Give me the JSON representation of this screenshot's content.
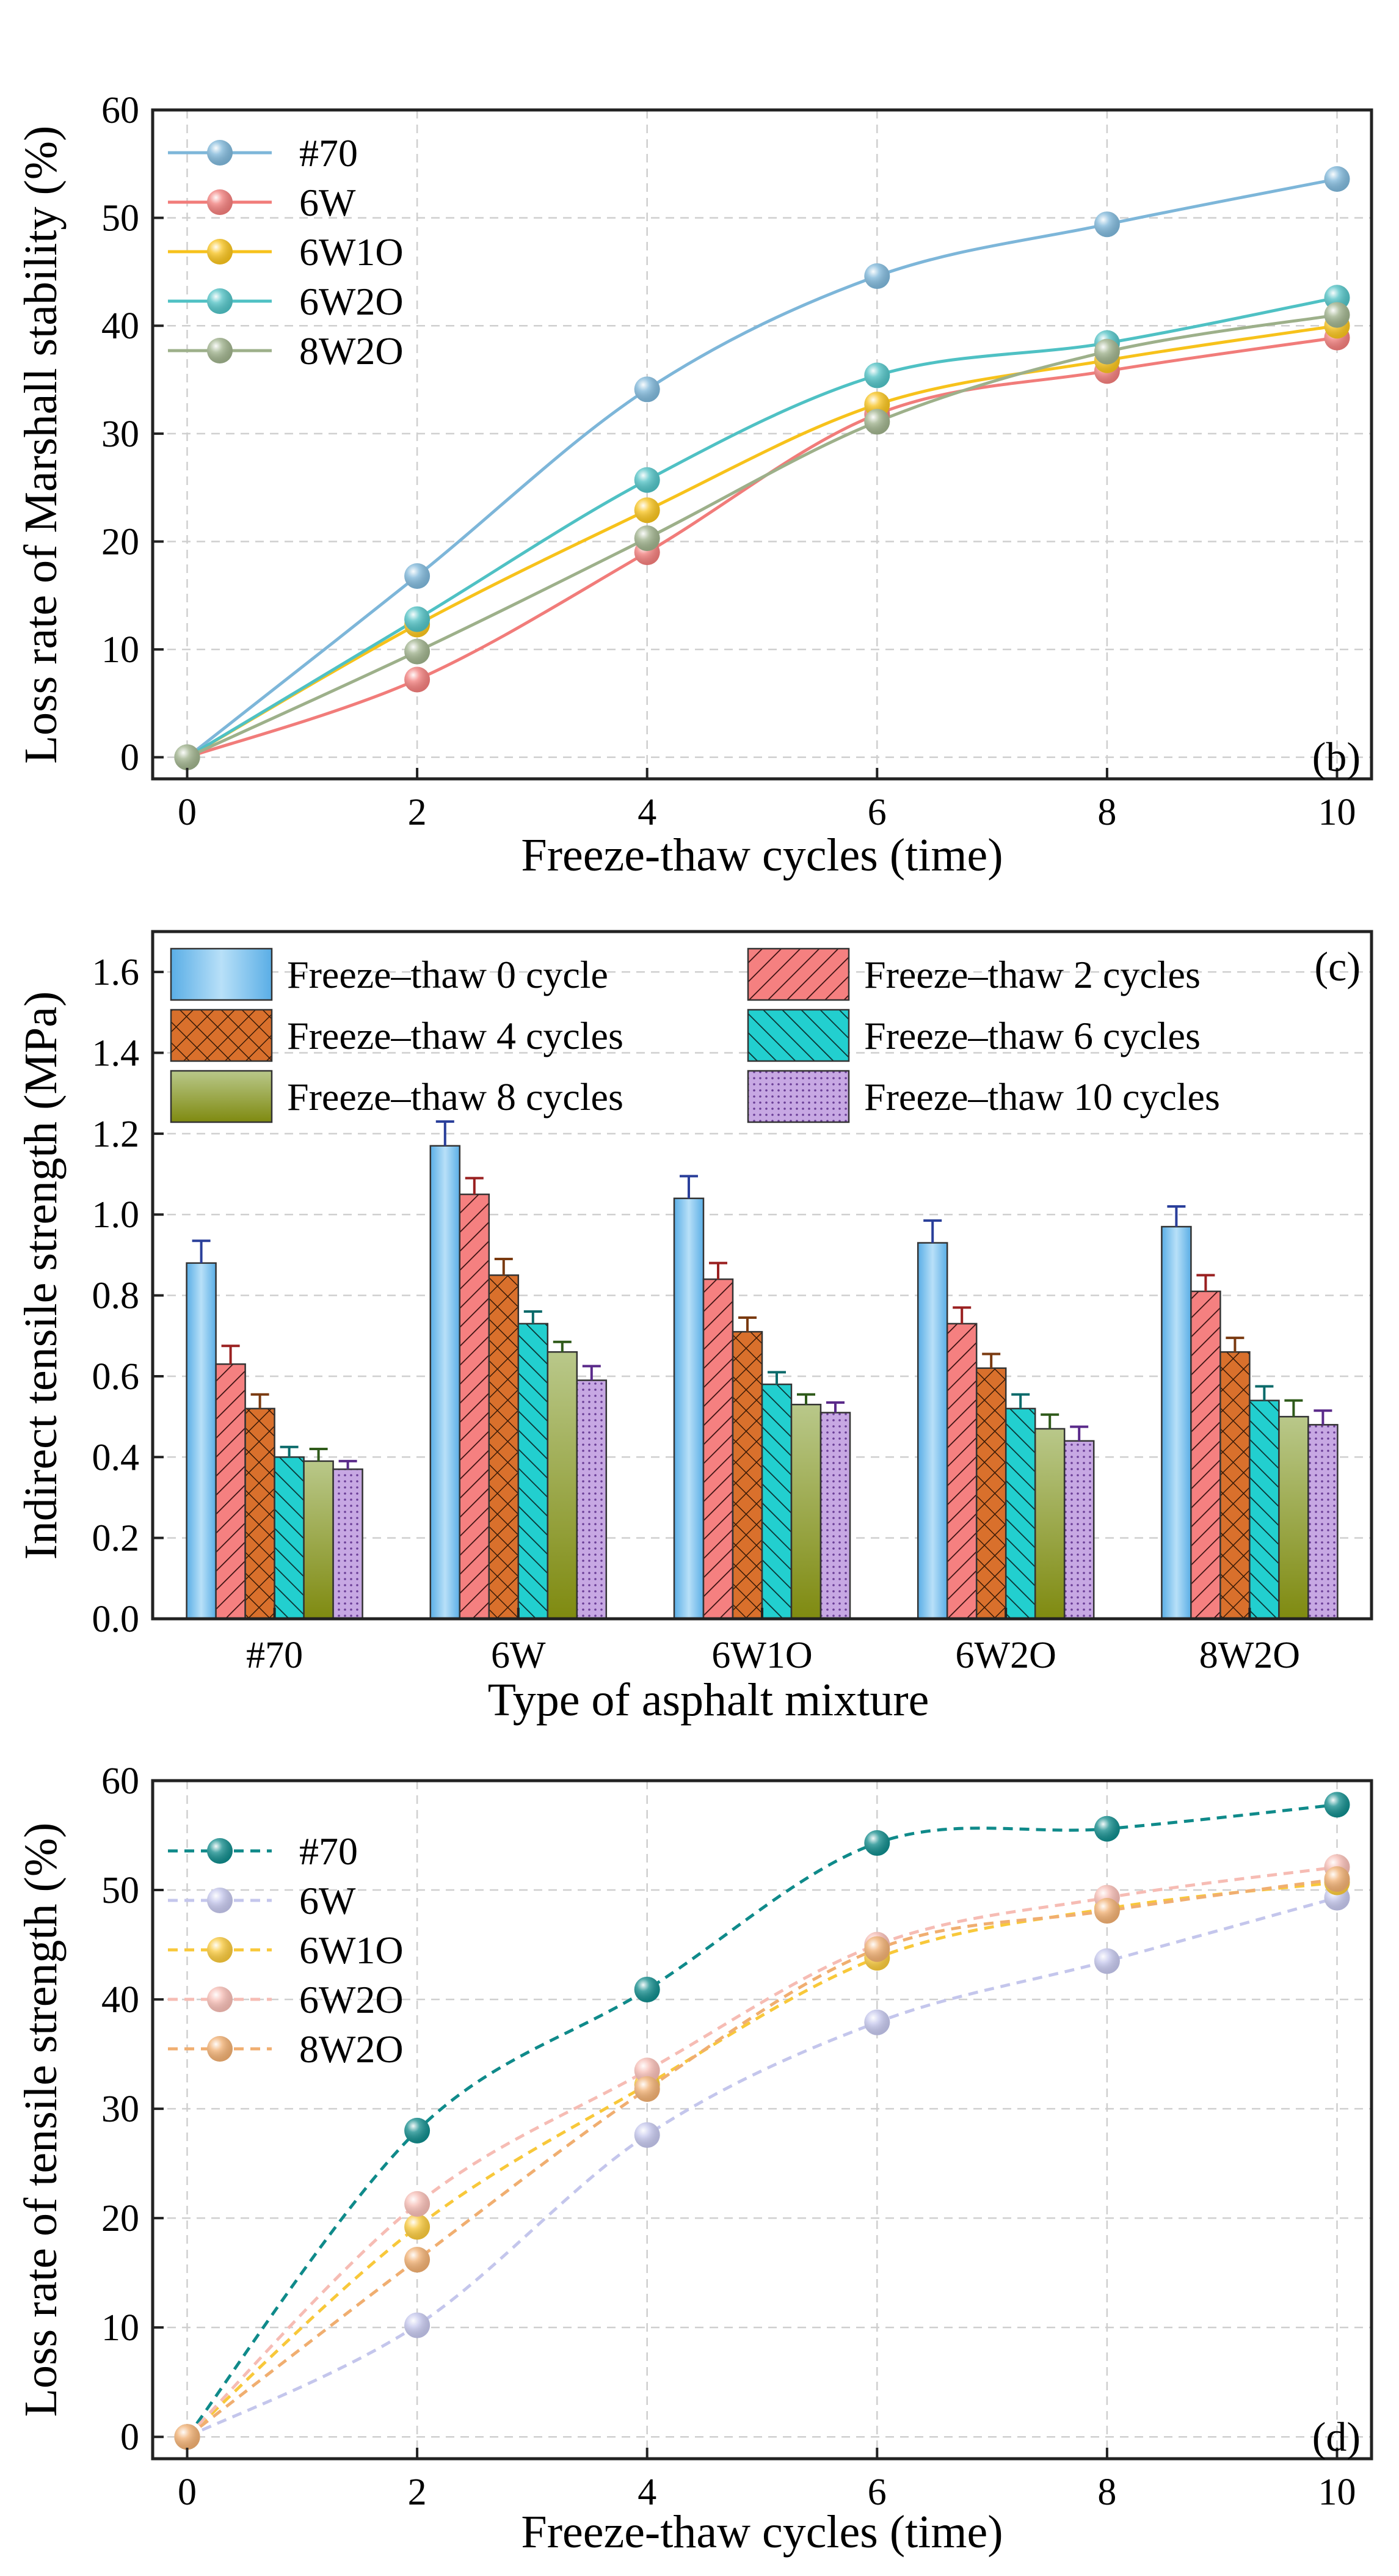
{
  "chart_data": [
    {
      "id": "b",
      "type": "line",
      "panel_tag": "(b)",
      "title": "",
      "xlabel": "Freeze-thaw cycles (time)",
      "ylabel": "Loss rate of Marshall stability (%)",
      "x": [
        0,
        2,
        4,
        6,
        8,
        10
      ],
      "xlim": [
        -0.3,
        10.3
      ],
      "ylim": [
        -2,
        60
      ],
      "xticks": [
        0,
        2,
        4,
        6,
        8,
        10
      ],
      "yticks": [
        0,
        10,
        20,
        30,
        40,
        50,
        60
      ],
      "grid": true,
      "legend_position": "top-left",
      "series": [
        {
          "name": "#70",
          "color": "#7db6d9",
          "line_style": "solid",
          "values": [
            0,
            16.8,
            34.1,
            44.6,
            49.4,
            53.6
          ]
        },
        {
          "name": "6W",
          "color": "#f17c7a",
          "line_style": "solid",
          "values": [
            0,
            7.2,
            19.0,
            31.8,
            35.8,
            38.9
          ]
        },
        {
          "name": "6W1O",
          "color": "#f7c21b",
          "line_style": "solid",
          "values": [
            0,
            12.3,
            22.9,
            32.7,
            36.8,
            40.0
          ]
        },
        {
          "name": "6W2O",
          "color": "#4fc1c4",
          "line_style": "solid",
          "values": [
            0,
            12.8,
            25.7,
            35.4,
            38.4,
            42.6
          ]
        },
        {
          "name": "8W2O",
          "color": "#9db08a",
          "line_style": "solid",
          "values": [
            0,
            9.8,
            20.3,
            31.1,
            37.6,
            41.0
          ]
        }
      ]
    },
    {
      "id": "c",
      "type": "bar",
      "panel_tag": "(c)",
      "title": "",
      "xlabel": "Type of asphalt mixture",
      "ylabel": "Indirect tensile strength (MPa)",
      "categories": [
        "#70",
        "6W",
        "6W1O",
        "6W2O",
        "8W2O"
      ],
      "ylim": [
        0,
        1.7
      ],
      "yticks": [
        "0.0",
        "0.2",
        "0.4",
        "0.6",
        "0.8",
        "1.0",
        "1.2",
        "1.4",
        "1.6"
      ],
      "grid": true,
      "legend_position": "top",
      "series": [
        {
          "name": "Freeze–thaw 0 cycle",
          "color": "#7ec4ec",
          "pattern": "gradient-blue",
          "values": [
            0.88,
            1.17,
            1.04,
            0.93,
            0.97
          ],
          "errors": [
            0.055,
            0.06,
            0.055,
            0.055,
            0.05
          ],
          "error_color": "#2a3f9a"
        },
        {
          "name": "Freeze–thaw 2 cycles",
          "color": "#f26b6b",
          "pattern": "diagonal",
          "values": [
            0.63,
            1.05,
            0.84,
            0.73,
            0.81
          ],
          "errors": [
            0.045,
            0.04,
            0.04,
            0.04,
            0.04
          ],
          "error_color": "#9a2020"
        },
        {
          "name": "Freeze–thaw 4 cycles",
          "color": "#d9702c",
          "pattern": "crosshatch",
          "values": [
            0.52,
            0.85,
            0.71,
            0.62,
            0.66
          ],
          "errors": [
            0.035,
            0.04,
            0.035,
            0.035,
            0.035
          ],
          "error_color": "#7a3a10"
        },
        {
          "name": "Freeze–thaw 6 cycles",
          "color": "#1ec9c9",
          "pattern": "back-diagonal",
          "values": [
            0.4,
            0.73,
            0.58,
            0.52,
            0.54
          ],
          "errors": [
            0.025,
            0.03,
            0.03,
            0.035,
            0.035
          ],
          "error_color": "#0a6a6a"
        },
        {
          "name": "Freeze–thaw 8 cycles",
          "color": "#9aab3a",
          "pattern": "gradient-olive",
          "values": [
            0.39,
            0.66,
            0.53,
            0.47,
            0.5
          ],
          "errors": [
            0.03,
            0.025,
            0.025,
            0.035,
            0.04
          ],
          "error_color": "#2f5a1a"
        },
        {
          "name": "Freeze–thaw 10 cycles",
          "color": "#c2a3df",
          "pattern": "dots",
          "values": [
            0.37,
            0.59,
            0.51,
            0.44,
            0.48
          ],
          "errors": [
            0.02,
            0.035,
            0.025,
            0.035,
            0.035
          ],
          "error_color": "#5a2a8a"
        }
      ]
    },
    {
      "id": "d",
      "type": "line",
      "panel_tag": "(d)",
      "title": "",
      "xlabel": "Freeze-thaw cycles (time)",
      "ylabel": "Loss rate of tensile strength (%)",
      "x": [
        0,
        2,
        4,
        6,
        8,
        10
      ],
      "xlim": [
        -0.3,
        10.3
      ],
      "ylim": [
        -2,
        60
      ],
      "xticks": [
        0,
        2,
        4,
        6,
        8,
        10
      ],
      "yticks": [
        0,
        10,
        20,
        30,
        40,
        50,
        60
      ],
      "grid": true,
      "legend_position": "top-left",
      "series": [
        {
          "name": "#70",
          "color": "#0f8a8a",
          "line_style": "dashed",
          "values": [
            0,
            28.0,
            40.9,
            54.3,
            55.6,
            57.8
          ]
        },
        {
          "name": "6W",
          "color": "#c4c6ec",
          "line_style": "dashed",
          "values": [
            0,
            10.2,
            27.6,
            37.9,
            43.5,
            49.3
          ]
        },
        {
          "name": "6W1O",
          "color": "#f8c83a",
          "line_style": "dashed",
          "values": [
            0,
            19.2,
            32.2,
            43.8,
            48.3,
            50.7
          ]
        },
        {
          "name": "6W2O",
          "color": "#f6bcb4",
          "line_style": "dashed",
          "values": [
            0,
            21.3,
            33.5,
            45.0,
            49.3,
            52.1
          ]
        },
        {
          "name": "8W2O",
          "color": "#f0ae70",
          "line_style": "dashed",
          "values": [
            0,
            16.2,
            31.8,
            44.6,
            48.1,
            51.0
          ]
        }
      ]
    }
  ]
}
